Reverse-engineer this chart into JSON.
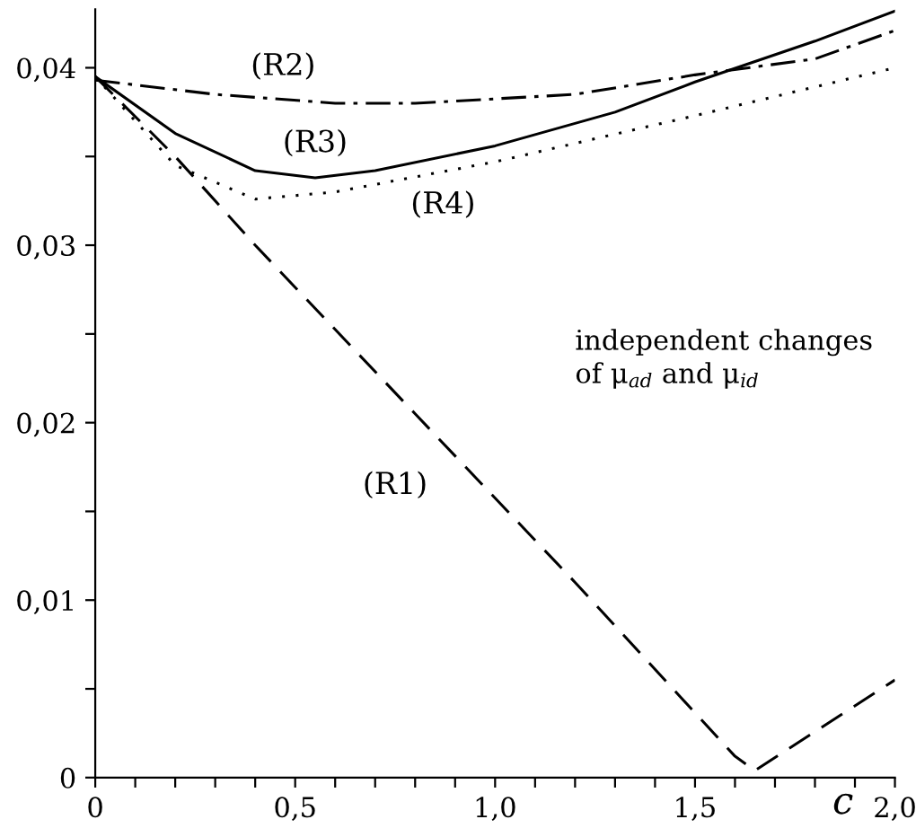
{
  "chart_data": {
    "type": "line",
    "xlabel": "c",
    "xlim": [
      0,
      2.0
    ],
    "ylim": [
      0,
      0.0433
    ],
    "xticks": [
      0,
      {
        "value": 0.1,
        "label": null
      },
      {
        "value": 0.2,
        "label": null
      },
      {
        "value": 0.3,
        "label": null
      },
      {
        "value": 0.4,
        "label": null
      },
      {
        "value": 0.5,
        "label": "0,5"
      },
      {
        "value": 0.6,
        "label": null
      },
      {
        "value": 0.7,
        "label": null
      },
      {
        "value": 0.8,
        "label": null
      },
      {
        "value": 0.9,
        "label": null
      },
      {
        "value": 1.0,
        "label": "1,0"
      },
      {
        "value": 1.1,
        "label": null
      },
      {
        "value": 1.2,
        "label": null
      },
      {
        "value": 1.3,
        "label": null
      },
      {
        "value": 1.4,
        "label": null
      },
      {
        "value": 1.5,
        "label": "1,5"
      },
      {
        "value": 1.6,
        "label": null
      },
      {
        "value": 1.7,
        "label": null
      },
      {
        "value": 1.8,
        "label": null
      },
      {
        "value": 1.9,
        "label": null
      },
      {
        "value": 2.0,
        "label": "2,0"
      }
    ],
    "yticks": [
      0,
      {
        "value": 0.005,
        "label": null
      },
      {
        "value": 0.01,
        "label": "0,01"
      },
      {
        "value": 0.015,
        "label": null
      },
      {
        "value": 0.02,
        "label": "0,02"
      },
      {
        "value": 0.025,
        "label": null
      },
      {
        "value": 0.03,
        "label": "0,03"
      },
      {
        "value": 0.035,
        "label": null
      },
      {
        "value": 0.04,
        "label": "0,04"
      }
    ],
    "grid": false,
    "legend": false,
    "series": [
      {
        "name": "(R1)",
        "color": "#000000",
        "line_style": "dashed",
        "x": [
          0,
          0.2,
          0.4,
          0.8,
          1.2,
          1.6,
          1.65,
          2.0
        ],
        "values": [
          0.0395,
          0.035,
          0.03,
          0.0205,
          0.011,
          0.0012,
          0.0004,
          0.0055
        ]
      },
      {
        "name": "(R2)",
        "color": "#000000",
        "line_style": "dashdot",
        "x": [
          0,
          0.3,
          0.6,
          0.8,
          1.2,
          1.5,
          1.8,
          2.0
        ],
        "values": [
          0.0393,
          0.0385,
          0.038,
          0.038,
          0.0385,
          0.0396,
          0.0405,
          0.0421
        ]
      },
      {
        "name": "(R3)",
        "color": "#000000",
        "line_style": "solid",
        "x": [
          0,
          0.2,
          0.4,
          0.55,
          0.7,
          1.0,
          1.3,
          1.5,
          1.8,
          2.0
        ],
        "values": [
          0.0395,
          0.0363,
          0.0342,
          0.0338,
          0.0342,
          0.0356,
          0.0375,
          0.0392,
          0.0415,
          0.0432
        ]
      },
      {
        "name": "(R4)",
        "color": "#000000",
        "line_style": "dotted",
        "x": [
          0,
          0.2,
          0.4,
          0.6,
          1.0,
          1.5,
          2.0
        ],
        "values": [
          0.0395,
          0.0345,
          0.0326,
          0.033,
          0.0347,
          0.0373,
          0.04
        ]
      }
    ],
    "annotations": [
      "independent changes\nof μ$_{ad}$ and μ$_{id}$"
    ]
  }
}
